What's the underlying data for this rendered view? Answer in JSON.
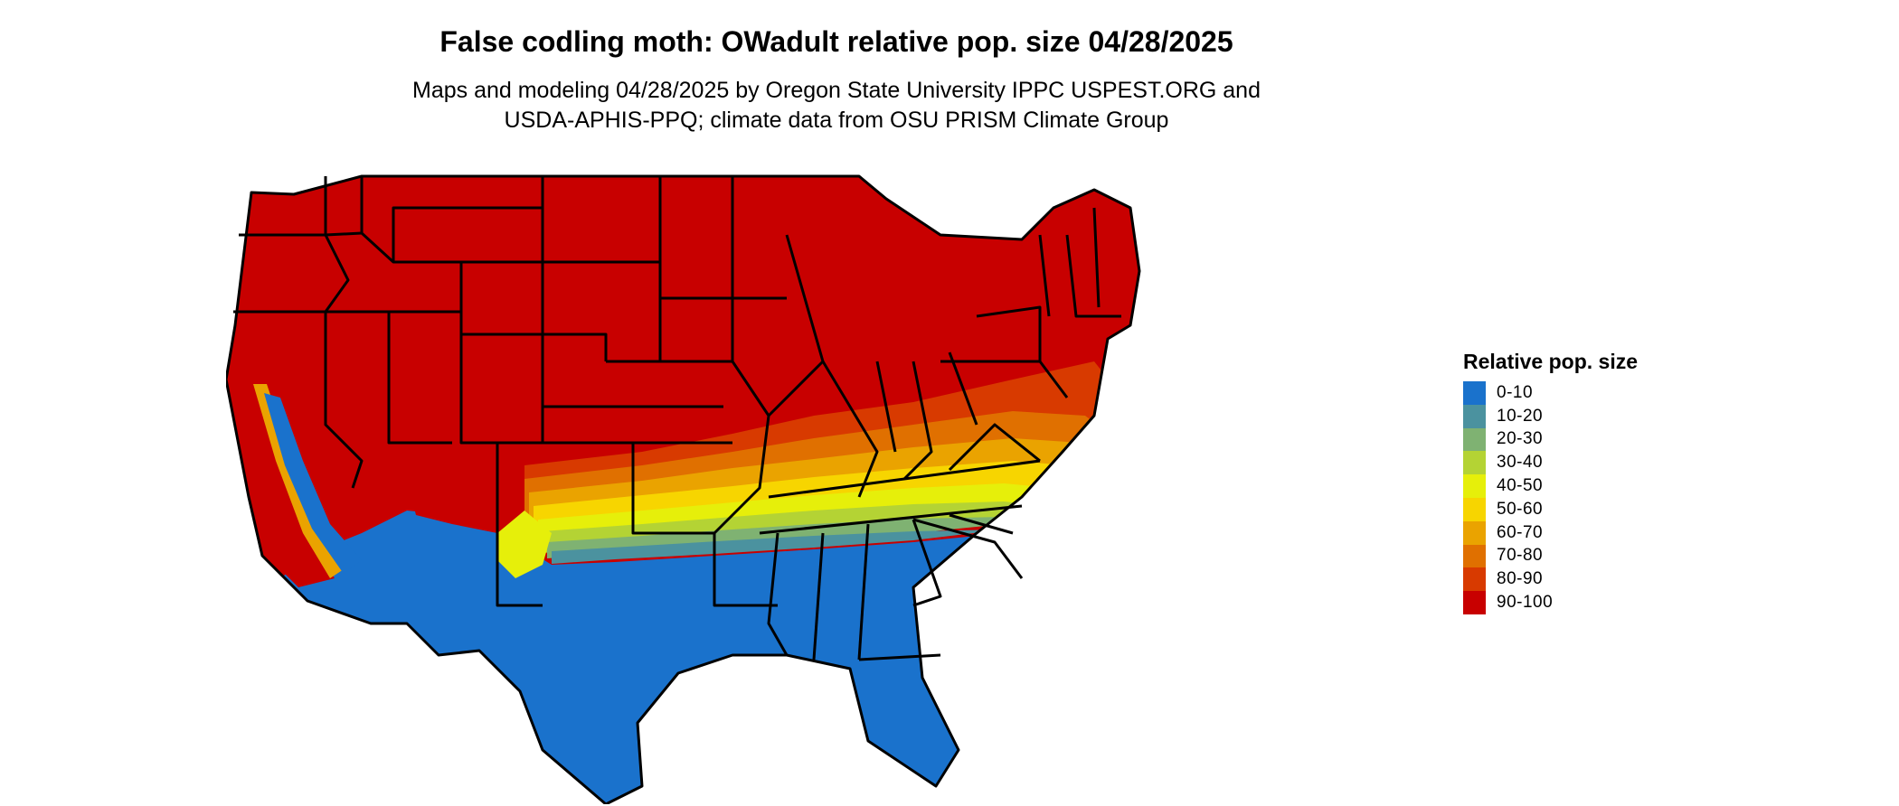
{
  "title": "False codling moth: OWadult relative pop. size 04/28/2025",
  "subtitle_line1": "Maps and modeling 04/28/2025 by Oregon State University IPPC USPEST.ORG and",
  "subtitle_line2": "USDA-APHIS-PPQ; climate data from OSU PRISM Climate Group",
  "map": {
    "region": "Contiguous United States",
    "high_class_color": "#c80000",
    "low_class_color": "#1a72cc",
    "border_color": "#000000"
  },
  "legend": {
    "title": "Relative pop. size",
    "items": [
      {
        "label": "0-10",
        "color": "#1a72cc"
      },
      {
        "label": "10-20",
        "color": "#4b929f"
      },
      {
        "label": "20-30",
        "color": "#7fb272"
      },
      {
        "label": "30-40",
        "color": "#b4d334"
      },
      {
        "label": "40-50",
        "color": "#e6ef0a"
      },
      {
        "label": "50-60",
        "color": "#f7d500"
      },
      {
        "label": "60-70",
        "color": "#eaa300"
      },
      {
        "label": "70-80",
        "color": "#e07000"
      },
      {
        "label": "80-90",
        "color": "#d83a00"
      },
      {
        "label": "90-100",
        "color": "#c80000"
      }
    ]
  }
}
